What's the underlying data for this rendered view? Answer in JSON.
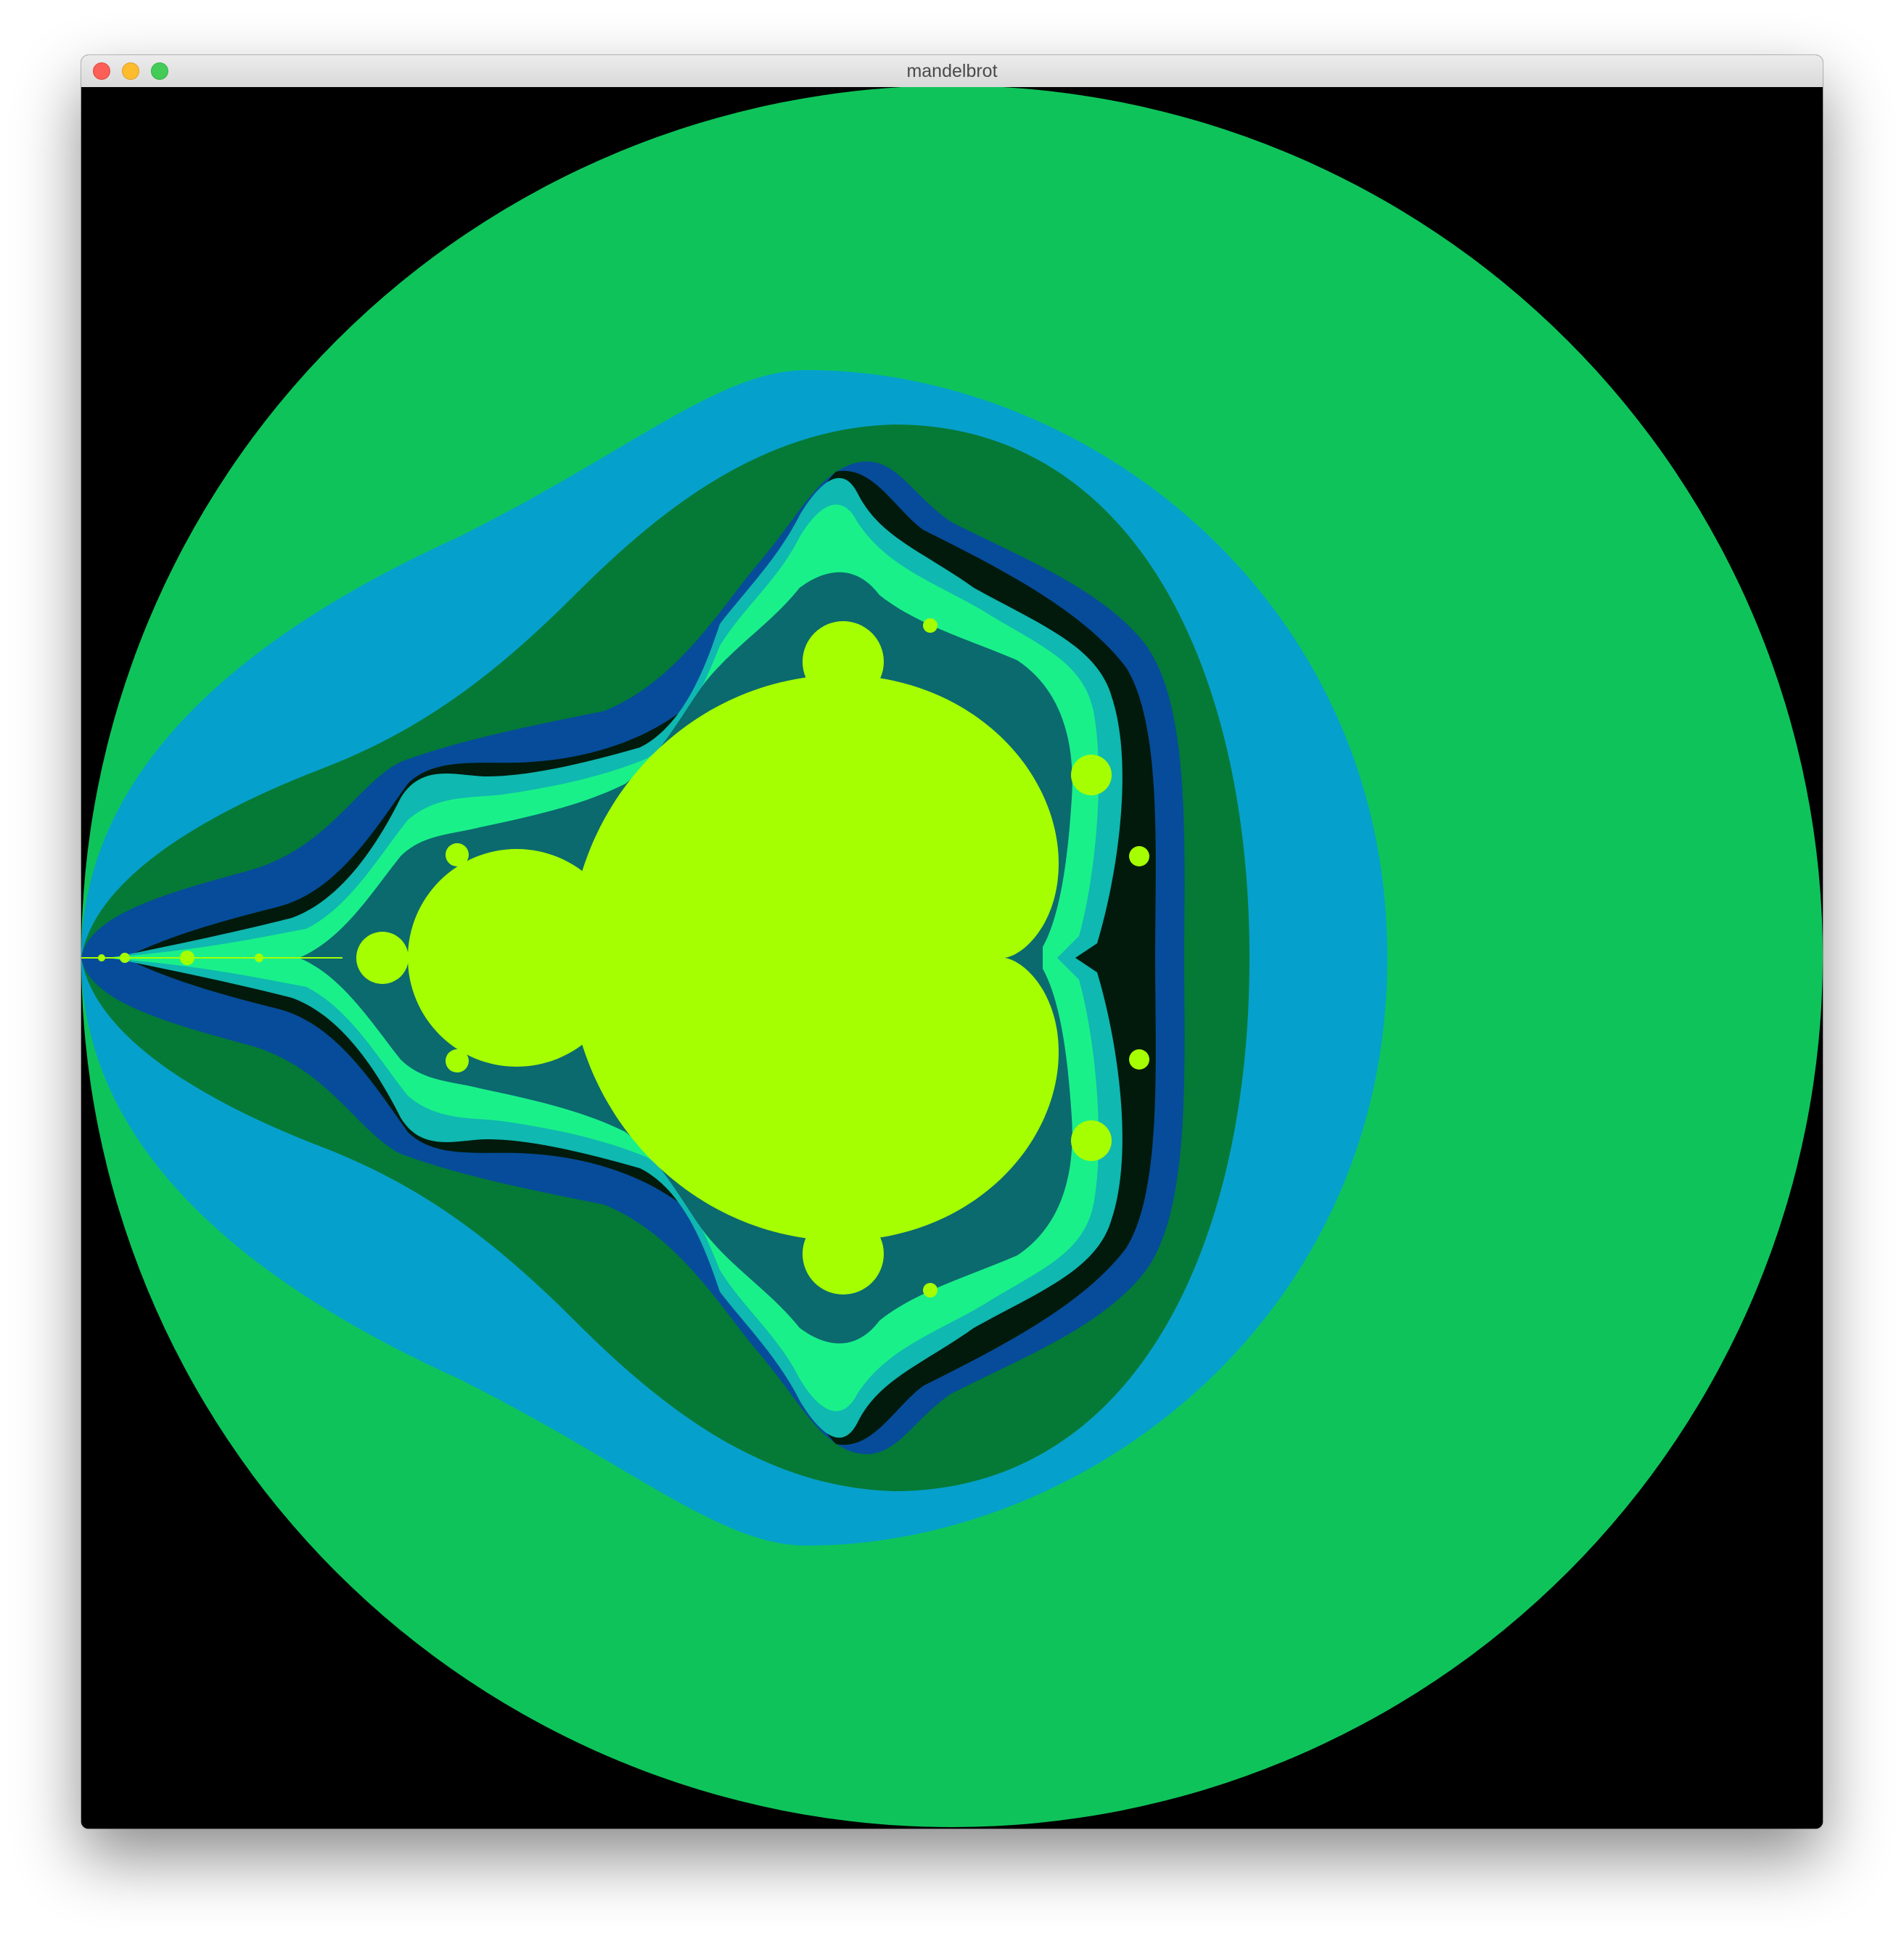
{
  "window": {
    "title": "mandelbrot",
    "controls": [
      "close",
      "minimize",
      "zoom"
    ]
  },
  "fractal": {
    "name": "Mandelbrot set",
    "colors": {
      "background": "#000000",
      "band_outer": "#0ec45a",
      "band_blue": "#06a0cc",
      "band_darkgreen": "#047a36",
      "band_navy": "#064c9a",
      "band_black": "#021a0c",
      "edge_teal": "#0fb8b0",
      "edge_mint": "#1af08a",
      "set_interior": "#a6ff00"
    }
  }
}
